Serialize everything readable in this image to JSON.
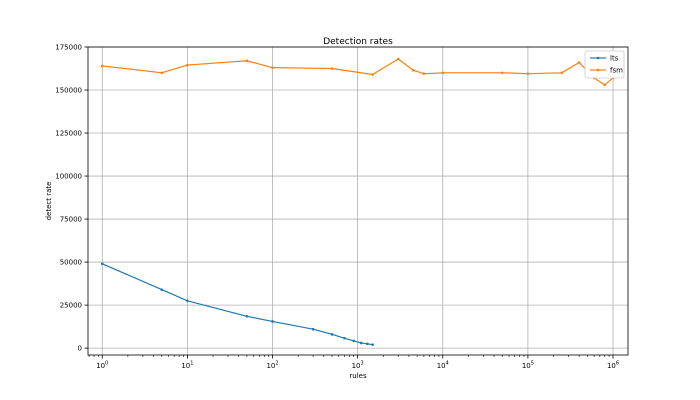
{
  "chart_data": {
    "type": "line",
    "title": "Detection rates",
    "xlabel": "rules",
    "ylabel": "detect rate",
    "xscale": "log",
    "xlim": [
      0.68,
      1500000
    ],
    "ylim": [
      -4000,
      175000
    ],
    "grid": true,
    "legend_position": "top-right",
    "x_ticks": [
      {
        "value": 1,
        "base": "10",
        "exp": "0"
      },
      {
        "value": 10,
        "base": "10",
        "exp": "1"
      },
      {
        "value": 100,
        "base": "10",
        "exp": "2"
      },
      {
        "value": 1000,
        "base": "10",
        "exp": "3"
      },
      {
        "value": 10000,
        "base": "10",
        "exp": "4"
      },
      {
        "value": 100000,
        "base": "10",
        "exp": "5"
      },
      {
        "value": 1000000,
        "base": "10",
        "exp": "6"
      }
    ],
    "y_ticks": [
      {
        "value": 0,
        "label": "0"
      },
      {
        "value": 25000,
        "label": "25000"
      },
      {
        "value": 50000,
        "label": "50000"
      },
      {
        "value": 75000,
        "label": "75000"
      },
      {
        "value": 100000,
        "label": "100000"
      },
      {
        "value": 125000,
        "label": "125000"
      },
      {
        "value": 150000,
        "label": "150000"
      },
      {
        "value": 175000,
        "label": "175000"
      }
    ],
    "series": [
      {
        "name": "lts",
        "color": "#1f77b4",
        "points": [
          [
            1,
            49000
          ],
          [
            5,
            34000
          ],
          [
            10,
            27500
          ],
          [
            50,
            18500
          ],
          [
            100,
            15500
          ],
          [
            300,
            11000
          ],
          [
            500,
            8000
          ],
          [
            700,
            5800
          ],
          [
            900,
            4200
          ],
          [
            1100,
            3000
          ],
          [
            1300,
            2500
          ],
          [
            1500,
            2000
          ]
        ]
      },
      {
        "name": "fsm",
        "color": "#ff7f0e",
        "points": [
          [
            1,
            164000
          ],
          [
            5,
            160000
          ],
          [
            10,
            164500
          ],
          [
            50,
            167000
          ],
          [
            100,
            163000
          ],
          [
            500,
            162500
          ],
          [
            1500,
            159000
          ],
          [
            3000,
            168000
          ],
          [
            4500,
            161500
          ],
          [
            6000,
            159500
          ],
          [
            10000,
            160000
          ],
          [
            50000,
            160000
          ],
          [
            100000,
            159500
          ],
          [
            250000,
            160000
          ],
          [
            400000,
            166000
          ],
          [
            600000,
            157000
          ],
          [
            800000,
            153000
          ],
          [
            1000000,
            157000
          ]
        ]
      }
    ]
  }
}
